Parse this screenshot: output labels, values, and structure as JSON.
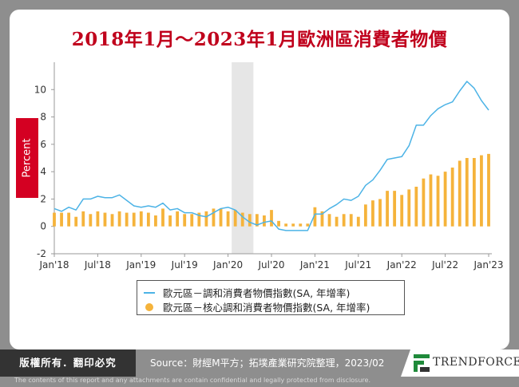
{
  "title": "2018年1月～2023年1月歐洲區消費者物價",
  "ylabel": "Percent",
  "chart_data": {
    "type": "bar+line",
    "title": "2018年1月～2023年1月歐洲區消費者物價",
    "ylabel": "Percent",
    "ylim": [
      -2,
      12
    ],
    "yticks": [
      "-2",
      "0",
      "2",
      "4",
      "6",
      "8",
      "10"
    ],
    "xticks": [
      "Jan'18",
      "Jul'18",
      "Jan'19",
      "Jul'19",
      "Jan'20",
      "Jul'20",
      "Jan'21",
      "Jul'21",
      "Jan'22",
      "Jul'22",
      "Jan'23"
    ],
    "x_start": "2018-01",
    "shaded_months": [
      "2020-02",
      "2020-03",
      "2020-04"
    ],
    "series": [
      {
        "name": "歐元區－調和消費者物價指數(SA, 年增率)",
        "type": "line",
        "color": "#4cb3e6",
        "values": [
          1.3,
          1.1,
          1.4,
          1.2,
          2.0,
          2.0,
          2.2,
          2.1,
          2.1,
          2.3,
          1.9,
          1.5,
          1.4,
          1.5,
          1.4,
          1.7,
          1.2,
          1.3,
          1.0,
          1.0,
          0.8,
          0.7,
          1.0,
          1.3,
          1.4,
          1.2,
          0.7,
          0.3,
          0.1,
          0.3,
          0.4,
          -0.2,
          -0.3,
          -0.3,
          -0.3,
          -0.3,
          0.9,
          0.9,
          1.3,
          1.6,
          2.0,
          1.9,
          2.2,
          3.0,
          3.4,
          4.1,
          4.9,
          5.0,
          5.1,
          5.9,
          7.4,
          7.4,
          8.1,
          8.6,
          8.9,
          9.1,
          9.9,
          10.6,
          10.1,
          9.2,
          8.5
        ]
      },
      {
        "name": "歐元區－核心調和消費者物價指數(SA, 年增率)",
        "type": "bar",
        "color": "#f5b33b",
        "values": [
          1.0,
          1.0,
          1.0,
          0.7,
          1.1,
          0.9,
          1.1,
          1.0,
          0.9,
          1.1,
          1.0,
          1.0,
          1.1,
          1.0,
          0.8,
          1.3,
          0.8,
          1.1,
          0.9,
          0.9,
          1.0,
          1.1,
          1.3,
          1.3,
          1.1,
          1.2,
          1.0,
          0.9,
          0.9,
          0.8,
          1.2,
          0.4,
          0.2,
          0.2,
          0.2,
          0.2,
          1.4,
          1.1,
          0.9,
          0.7,
          0.9,
          0.9,
          0.7,
          1.6,
          1.9,
          2.0,
          2.6,
          2.6,
          2.3,
          2.7,
          2.9,
          3.5,
          3.8,
          3.7,
          4.0,
          4.3,
          4.8,
          5.0,
          5.0,
          5.2,
          5.3
        ]
      }
    ]
  },
  "legend": {
    "line_label": "歐元區－調和消費者物價指數(SA, 年增率)",
    "bar_label": "歐元區－核心調和消費者物價指數(SA, 年增率)"
  },
  "footer": {
    "copyright": "版權所有．翻印必究",
    "source": "Source：財經M平方；拓墣產業研究院整理，2023/02",
    "logo": "TRENDFORCE",
    "disclaimer": "The contents of this report and any attachments are contain confidential and legally protected from disclosure."
  }
}
